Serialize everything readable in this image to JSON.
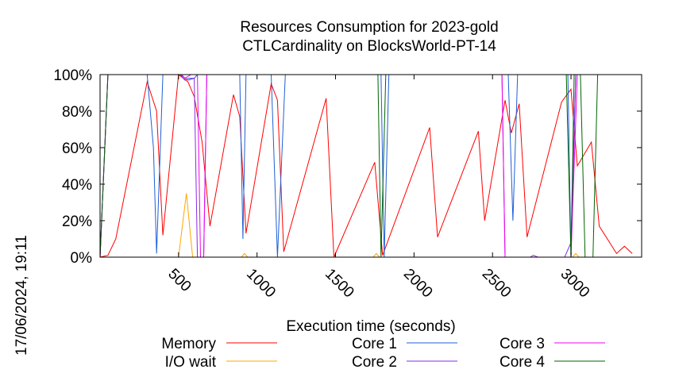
{
  "chart_data": {
    "type": "line",
    "title": "Resources Consumption for 2023-gold",
    "subtitle": "CTLCardinality on BlocksWorld-PT-14",
    "xlabel": "Execution time (seconds)",
    "ylabel": "",
    "date_stamp": "17/06/2024, 19:11",
    "xlim": [
      0,
      3450
    ],
    "ylim": [
      0,
      100
    ],
    "grid": false,
    "legend_position": "bottom",
    "x_ticks": [
      {
        "value": 500,
        "label": "500"
      },
      {
        "value": 1000,
        "label": "1000"
      },
      {
        "value": 1500,
        "label": "1500"
      },
      {
        "value": 2000,
        "label": "2000"
      },
      {
        "value": 2500,
        "label": "2500"
      },
      {
        "value": 3000,
        "label": "3000"
      }
    ],
    "y_ticks": [
      {
        "value": 0,
        "label": "0%"
      },
      {
        "value": 20,
        "label": "20%"
      },
      {
        "value": 40,
        "label": "40%"
      },
      {
        "value": 60,
        "label": "60%"
      },
      {
        "value": 80,
        "label": "80%"
      },
      {
        "value": 100,
        "label": "100%"
      }
    ],
    "series": [
      {
        "name": "Memory",
        "color": "#ff0000",
        "points": [
          [
            0,
            0
          ],
          [
            50,
            1
          ],
          [
            100,
            10
          ],
          [
            300,
            96
          ],
          [
            360,
            80
          ],
          [
            400,
            12
          ],
          [
            500,
            100
          ],
          [
            560,
            96
          ],
          [
            600,
            88
          ],
          [
            650,
            63
          ],
          [
            700,
            17
          ],
          [
            850,
            89
          ],
          [
            890,
            77
          ],
          [
            930,
            13
          ],
          [
            1090,
            95
          ],
          [
            1130,
            86
          ],
          [
            1170,
            3
          ],
          [
            1440,
            87
          ],
          [
            1490,
            0
          ],
          [
            1750,
            52
          ],
          [
            1800,
            1
          ],
          [
            2100,
            71
          ],
          [
            2150,
            11
          ],
          [
            2410,
            69
          ],
          [
            2450,
            20
          ],
          [
            2580,
            86
          ],
          [
            2620,
            68
          ],
          [
            2670,
            84
          ],
          [
            2720,
            11
          ],
          [
            2940,
            85
          ],
          [
            3000,
            92
          ],
          [
            3040,
            50
          ],
          [
            3130,
            63
          ],
          [
            3180,
            17
          ],
          [
            3290,
            2
          ],
          [
            3340,
            6
          ],
          [
            3390,
            2
          ]
        ]
      },
      {
        "name": "I/O wait",
        "color": "#ffa500",
        "points": [
          [
            0,
            0
          ],
          [
            500,
            0
          ],
          [
            550,
            35
          ],
          [
            590,
            0
          ],
          [
            900,
            0
          ],
          [
            920,
            2
          ],
          [
            940,
            0
          ],
          [
            1740,
            0
          ],
          [
            1760,
            2
          ],
          [
            1780,
            0
          ],
          [
            3010,
            0
          ],
          [
            3030,
            2
          ],
          [
            3050,
            0
          ],
          [
            3400,
            0
          ]
        ]
      },
      {
        "name": "Core 1",
        "color": "#1f5fd6",
        "points": [
          [
            0,
            0
          ],
          [
            50,
            100
          ],
          [
            300,
            100
          ],
          [
            340,
            60
          ],
          [
            360,
            2
          ],
          [
            400,
            100
          ],
          [
            510,
            100
          ],
          [
            540,
            97
          ],
          [
            560,
            98
          ],
          [
            600,
            98
          ],
          [
            620,
            100
          ],
          [
            890,
            100
          ],
          [
            910,
            10
          ],
          [
            930,
            100
          ],
          [
            1090,
            100
          ],
          [
            1130,
            0
          ],
          [
            1180,
            100
          ],
          [
            1790,
            100
          ],
          [
            1810,
            0
          ],
          [
            1840,
            100
          ],
          [
            2600,
            100
          ],
          [
            2630,
            20
          ],
          [
            2660,
            100
          ],
          [
            2980,
            100
          ],
          [
            3000,
            0
          ],
          [
            3030,
            100
          ],
          [
            3400,
            100
          ]
        ]
      },
      {
        "name": "Core 2",
        "color": "#8a2be2",
        "points": [
          [
            0,
            0
          ],
          [
            50,
            100
          ],
          [
            510,
            100
          ],
          [
            560,
            97
          ],
          [
            600,
            98
          ],
          [
            620,
            0
          ],
          [
            660,
            0
          ],
          [
            680,
            100
          ],
          [
            2560,
            100
          ],
          [
            2580,
            0
          ],
          [
            2700,
            0
          ],
          [
            2740,
            0
          ],
          [
            2760,
            1
          ],
          [
            2790,
            0
          ],
          [
            2960,
            0
          ],
          [
            3000,
            8
          ],
          [
            3030,
            100
          ],
          [
            3400,
            100
          ]
        ]
      },
      {
        "name": "Core 3",
        "color": "#ee00ee",
        "points": [
          [
            0,
            0
          ],
          [
            50,
            100
          ],
          [
            520,
            100
          ],
          [
            540,
            98
          ],
          [
            580,
            100
          ],
          [
            620,
            100
          ],
          [
            640,
            0
          ],
          [
            660,
            0
          ],
          [
            680,
            100
          ],
          [
            2560,
            100
          ],
          [
            2580,
            0
          ],
          [
            2690,
            0
          ],
          [
            2720,
            0
          ],
          [
            2970,
            0
          ],
          [
            3000,
            0
          ],
          [
            3040,
            100
          ],
          [
            3400,
            100
          ]
        ]
      },
      {
        "name": "Core 4",
        "color": "#006400",
        "points": [
          [
            0,
            0
          ],
          [
            50,
            100
          ],
          [
            1770,
            100
          ],
          [
            1790,
            0
          ],
          [
            1820,
            100
          ],
          [
            2970,
            100
          ],
          [
            3000,
            0
          ],
          [
            3020,
            100
          ],
          [
            3060,
            100
          ],
          [
            3090,
            0
          ],
          [
            3140,
            0
          ],
          [
            3170,
            100
          ],
          [
            3400,
            100
          ]
        ]
      }
    ]
  }
}
